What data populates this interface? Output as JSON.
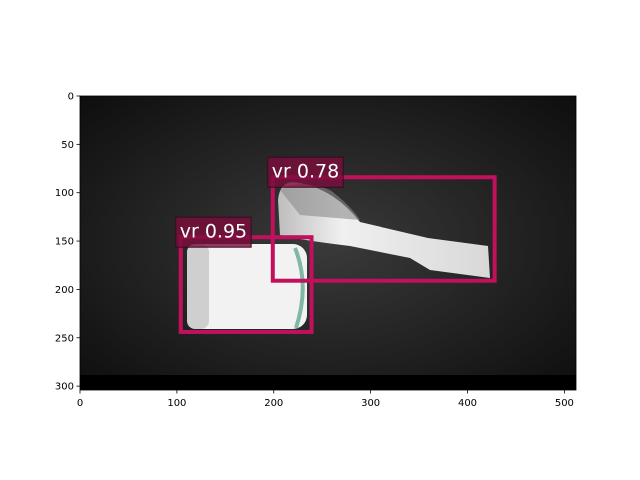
{
  "chart_data": {
    "type": "image-detections",
    "xlim": [
      0,
      512
    ],
    "ylim": [
      304,
      0
    ],
    "xticks": [
      0,
      100,
      200,
      300,
      400,
      500
    ],
    "yticks": [
      0,
      50,
      100,
      150,
      200,
      250,
      300
    ],
    "box_color": "#c2105c",
    "boxes": [
      {
        "label": "vr 0.95",
        "x": [
          104,
          239
        ],
        "y": [
          146,
          244
        ]
      },
      {
        "label": "vr 0.78",
        "x": [
          199,
          428
        ],
        "y": [
          84,
          191
        ]
      }
    ]
  }
}
